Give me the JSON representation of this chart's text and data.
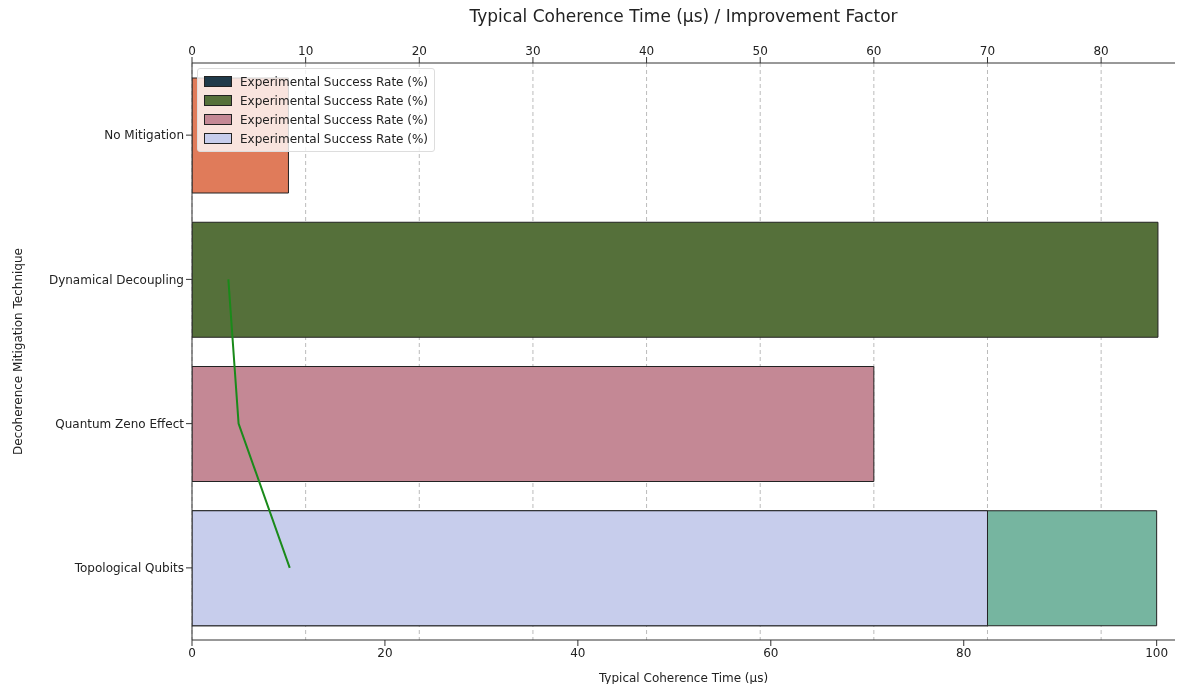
{
  "chart_data": {
    "type": "bar",
    "orientation": "horizontal",
    "x2label": "Typical Coherence Time (μs) / Improvement Factor",
    "xlabel": "Typical Coherence Time (μs)",
    "ylabel": "Decoherence Mitigation Technique",
    "categories": [
      "No Mitigation",
      "Dynamical Decoupling",
      "Quantum Zeno Effect",
      "Topological Qubits"
    ],
    "xlim": [
      0,
      101.9
    ],
    "xticks": [
      0,
      20,
      40,
      60,
      80,
      100
    ],
    "x2lim": [
      0,
      86.5
    ],
    "x2ticks": [
      0,
      10,
      20,
      30,
      40,
      50,
      60,
      70,
      80
    ],
    "series": [
      {
        "colors": [
          "#e07b5a",
          "#55703a",
          "#c48895",
          "#76b5a0"
        ],
        "values": [
          10,
          null,
          null,
          100
        ]
      },
      {
        "axis": "x2",
        "name": "Experimental Success Rate (%)",
        "colors": [
          "#1f3a4a",
          "#55703a",
          "#c48895",
          "#c7cdec"
        ],
        "values": [
          null,
          85,
          60,
          70
        ]
      },
      {
        "type": "line",
        "axis": "x2",
        "color": "#1a8a1a",
        "values": [
          null,
          3.2,
          4.1,
          8.6
        ]
      }
    ],
    "grid": "x",
    "legend": "top left",
    "marker": "none"
  }
}
